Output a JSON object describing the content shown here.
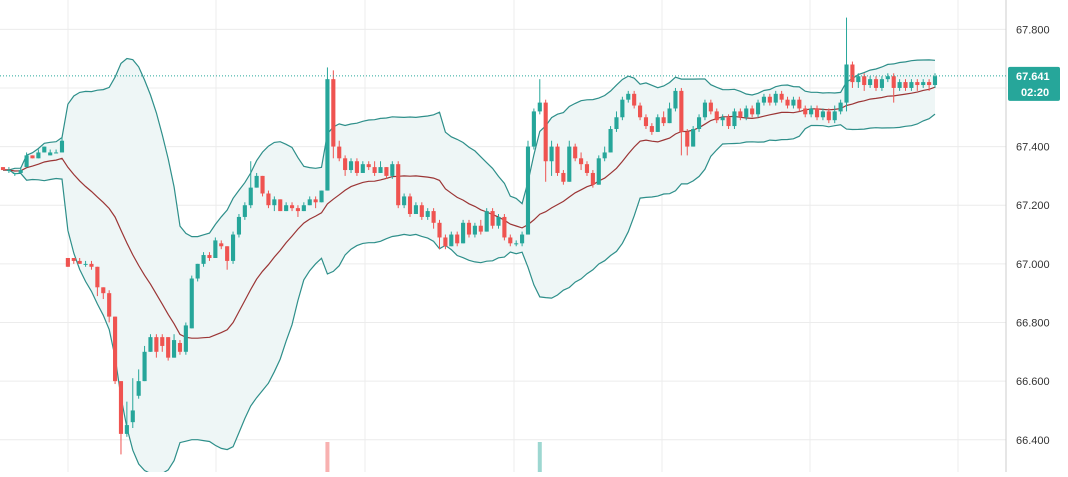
{
  "chart_data": {
    "type": "candlestick",
    "y_axis": {
      "position": "right",
      "ticks": [
        "67.800",
        "67.600",
        "67.400",
        "67.200",
        "67.000",
        "66.800",
        "66.600",
        "66.400"
      ],
      "tick_values": [
        67.8,
        67.6,
        67.4,
        67.2,
        67.0,
        66.8,
        66.6,
        66.4
      ],
      "ylim": [
        66.29,
        67.9
      ]
    },
    "grid": true,
    "last_price": {
      "value": 67.641,
      "label": "67.641",
      "countdown": "02:20"
    },
    "colors": {
      "up": "#26a69a",
      "down": "#ef5350",
      "band_line": "#2e8f8a",
      "band_fill": "#eef6f6",
      "ma_line": "#9b3535",
      "price_line": "#26a69a",
      "grid": "#ececec",
      "axis_text": "#333333"
    },
    "candles": [
      [
        67.33,
        67.32,
        67.32,
        67.33
      ],
      [
        67.32,
        67.32,
        67.31,
        67.33
      ],
      [
        67.31,
        67.31,
        67.3,
        67.31
      ],
      [
        67.31,
        67.32,
        67.31,
        67.33
      ],
      [
        67.33,
        67.37,
        67.33,
        67.38
      ],
      [
        67.37,
        67.36,
        67.36,
        67.37
      ],
      [
        67.36,
        67.38,
        67.36,
        67.39
      ],
      [
        67.38,
        67.4,
        67.38,
        67.4
      ],
      [
        67.37,
        67.38,
        67.37,
        67.39
      ],
      [
        67.38,
        67.38,
        67.38,
        67.39
      ],
      [
        67.38,
        67.42,
        67.38,
        67.43
      ],
      [
        67.02,
        66.99,
        66.99,
        67.02
      ],
      [
        67.02,
        67.01,
        67.0,
        67.02
      ],
      [
        67.01,
        67.0,
        67.0,
        67.02
      ],
      [
        67.0,
        67.0,
        66.99,
        67.01
      ],
      [
        67.0,
        66.99,
        66.98,
        67.01
      ],
      [
        66.99,
        66.92,
        66.89,
        66.99
      ],
      [
        66.92,
        66.9,
        66.88,
        66.92
      ],
      [
        66.9,
        66.82,
        66.8,
        66.91
      ],
      [
        66.82,
        66.6,
        66.59,
        66.82
      ],
      [
        66.6,
        66.42,
        66.35,
        66.6
      ],
      [
        66.42,
        66.45,
        66.41,
        66.53
      ],
      [
        66.46,
        66.5,
        66.44,
        66.61
      ],
      [
        66.55,
        66.6,
        66.54,
        66.64
      ],
      [
        66.6,
        66.7,
        66.6,
        66.72
      ],
      [
        66.7,
        66.75,
        66.7,
        66.76
      ],
      [
        66.75,
        66.7,
        66.68,
        66.76
      ],
      [
        66.75,
        66.72,
        66.7,
        66.76
      ],
      [
        66.75,
        66.68,
        66.67,
        66.75
      ],
      [
        66.68,
        66.74,
        66.68,
        66.76
      ],
      [
        66.73,
        66.7,
        66.69,
        66.74
      ],
      [
        66.7,
        66.79,
        66.69,
        66.8
      ],
      [
        66.78,
        66.95,
        66.78,
        66.96
      ],
      [
        66.95,
        67.0,
        66.94,
        67.0
      ],
      [
        67.0,
        67.03,
        66.99,
        67.04
      ],
      [
        67.03,
        67.02,
        67.01,
        67.04
      ],
      [
        67.02,
        67.08,
        67.02,
        67.09
      ],
      [
        67.07,
        67.06,
        67.05,
        67.08
      ],
      [
        67.06,
        67.01,
        66.98,
        67.06
      ],
      [
        67.01,
        67.1,
        67.0,
        67.11
      ],
      [
        67.1,
        67.16,
        67.09,
        67.17
      ],
      [
        67.16,
        67.2,
        67.15,
        67.21
      ],
      [
        67.2,
        67.26,
        67.19,
        67.35
      ],
      [
        67.26,
        67.3,
        67.26,
        67.31
      ],
      [
        67.3,
        67.24,
        67.23,
        67.3
      ],
      [
        67.24,
        67.2,
        67.19,
        67.25
      ],
      [
        67.2,
        67.22,
        67.18,
        67.23
      ],
      [
        67.22,
        67.18,
        67.18,
        67.22
      ],
      [
        67.18,
        67.2,
        67.18,
        67.21
      ],
      [
        67.2,
        67.19,
        67.18,
        67.21
      ],
      [
        67.19,
        67.18,
        67.16,
        67.2
      ],
      [
        67.18,
        67.2,
        67.18,
        67.21
      ],
      [
        67.2,
        67.22,
        67.2,
        67.23
      ],
      [
        67.22,
        67.21,
        67.19,
        67.23
      ],
      [
        67.21,
        67.25,
        67.21,
        67.25
      ],
      [
        67.25,
        67.63,
        67.25,
        67.67
      ],
      [
        67.63,
        67.4,
        67.36,
        67.66
      ],
      [
        67.4,
        67.36,
        67.35,
        67.42
      ],
      [
        67.36,
        67.32,
        67.3,
        67.37
      ],
      [
        67.32,
        67.35,
        67.31,
        67.36
      ],
      [
        67.35,
        67.31,
        67.3,
        67.36
      ],
      [
        67.31,
        67.34,
        67.31,
        67.35
      ],
      [
        67.34,
        67.33,
        67.32,
        67.35
      ],
      [
        67.33,
        67.31,
        67.3,
        67.35
      ],
      [
        67.31,
        67.33,
        67.31,
        67.35
      ],
      [
        67.33,
        67.3,
        67.29,
        67.33
      ],
      [
        67.3,
        67.34,
        67.29,
        67.35
      ],
      [
        67.34,
        67.2,
        67.19,
        67.35
      ],
      [
        67.2,
        67.23,
        67.19,
        67.24
      ],
      [
        67.23,
        67.17,
        67.16,
        67.24
      ],
      [
        67.17,
        67.2,
        67.17,
        67.21
      ],
      [
        67.2,
        67.16,
        67.15,
        67.21
      ],
      [
        67.16,
        67.18,
        67.15,
        67.19
      ],
      [
        67.18,
        67.14,
        67.12,
        67.19
      ],
      [
        67.14,
        67.09,
        67.05,
        67.15
      ],
      [
        67.09,
        67.06,
        67.05,
        67.1
      ],
      [
        67.06,
        67.1,
        67.06,
        67.11
      ],
      [
        67.1,
        67.07,
        67.06,
        67.11
      ],
      [
        67.07,
        67.14,
        67.07,
        67.15
      ],
      [
        67.14,
        67.1,
        67.09,
        67.15
      ],
      [
        67.1,
        67.13,
        67.09,
        67.14
      ],
      [
        67.13,
        67.11,
        67.1,
        67.15
      ],
      [
        67.11,
        67.18,
        67.11,
        67.19
      ],
      [
        67.18,
        67.13,
        67.12,
        67.19
      ],
      [
        67.13,
        67.16,
        67.12,
        67.17
      ],
      [
        67.16,
        67.09,
        67.08,
        67.17
      ],
      [
        67.09,
        67.07,
        67.06,
        67.1
      ],
      [
        67.07,
        67.07,
        67.06,
        67.08
      ],
      [
        67.07,
        67.1,
        67.06,
        67.11
      ],
      [
        67.1,
        67.4,
        67.1,
        67.42
      ],
      [
        67.4,
        67.52,
        67.39,
        67.53
      ],
      [
        67.52,
        67.55,
        67.51,
        67.63
      ],
      [
        67.55,
        67.35,
        67.28,
        67.56
      ],
      [
        67.35,
        67.4,
        67.3,
        67.42
      ],
      [
        67.4,
        67.31,
        67.3,
        67.41
      ],
      [
        67.31,
        67.28,
        67.27,
        67.32
      ],
      [
        67.28,
        67.4,
        67.28,
        67.42
      ],
      [
        67.4,
        67.36,
        67.35,
        67.41
      ],
      [
        67.36,
        67.34,
        67.32,
        67.38
      ],
      [
        67.34,
        67.31,
        67.3,
        67.35
      ],
      [
        67.31,
        67.27,
        67.26,
        67.32
      ],
      [
        67.27,
        67.36,
        67.27,
        67.37
      ],
      [
        67.36,
        67.38,
        67.35,
        67.4
      ],
      [
        67.38,
        67.46,
        67.38,
        67.47
      ],
      [
        67.46,
        67.5,
        67.45,
        67.52
      ],
      [
        67.5,
        67.56,
        67.49,
        67.57
      ],
      [
        67.56,
        67.58,
        67.55,
        67.59
      ],
      [
        67.58,
        67.54,
        67.53,
        67.59
      ],
      [
        67.54,
        67.5,
        67.49,
        67.55
      ],
      [
        67.5,
        67.47,
        67.46,
        67.51
      ],
      [
        67.47,
        67.45,
        67.44,
        67.48
      ],
      [
        67.45,
        67.5,
        67.45,
        67.51
      ],
      [
        67.5,
        67.48,
        67.47,
        67.52
      ],
      [
        67.48,
        67.53,
        67.48,
        67.55
      ],
      [
        67.53,
        67.59,
        67.52,
        67.6
      ],
      [
        67.59,
        67.45,
        67.37,
        67.6
      ],
      [
        67.45,
        67.4,
        67.37,
        67.46
      ],
      [
        67.4,
        67.46,
        67.4,
        67.47
      ],
      [
        67.46,
        67.5,
        67.45,
        67.51
      ],
      [
        67.5,
        67.55,
        67.49,
        67.56
      ],
      [
        67.55,
        67.52,
        67.51,
        67.56
      ],
      [
        67.52,
        67.49,
        67.48,
        67.53
      ],
      [
        67.49,
        67.5,
        67.47,
        67.51
      ],
      [
        67.5,
        67.47,
        67.46,
        67.51
      ],
      [
        67.47,
        67.52,
        67.46,
        67.53
      ],
      [
        67.52,
        67.5,
        67.49,
        67.53
      ],
      [
        67.5,
        67.53,
        67.49,
        67.54
      ],
      [
        67.53,
        67.51,
        67.5,
        67.54
      ],
      [
        67.51,
        67.55,
        67.5,
        67.56
      ],
      [
        67.55,
        67.57,
        67.54,
        67.58
      ],
      [
        67.57,
        67.55,
        67.54,
        67.58
      ],
      [
        67.55,
        67.58,
        67.54,
        67.59
      ],
      [
        67.58,
        67.56,
        67.55,
        67.59
      ],
      [
        67.56,
        67.54,
        67.53,
        67.57
      ],
      [
        67.54,
        67.56,
        67.53,
        67.57
      ],
      [
        67.56,
        67.53,
        67.52,
        67.57
      ],
      [
        67.53,
        67.51,
        67.5,
        67.54
      ],
      [
        67.51,
        67.53,
        67.5,
        67.54
      ],
      [
        67.53,
        67.5,
        67.49,
        67.54
      ],
      [
        67.5,
        67.52,
        67.49,
        67.53
      ],
      [
        67.52,
        67.49,
        67.48,
        67.53
      ],
      [
        67.49,
        67.52,
        67.48,
        67.54
      ],
      [
        67.52,
        67.55,
        67.51,
        67.56
      ],
      [
        67.55,
        67.68,
        67.52,
        67.84
      ],
      [
        67.68,
        67.62,
        67.6,
        67.69
      ],
      [
        67.62,
        67.64,
        67.6,
        67.65
      ],
      [
        67.64,
        67.61,
        67.59,
        67.65
      ],
      [
        67.61,
        67.63,
        67.6,
        67.64
      ],
      [
        67.63,
        67.6,
        67.59,
        67.64
      ],
      [
        67.6,
        67.63,
        67.59,
        67.64
      ],
      [
        67.63,
        67.64,
        67.62,
        67.65
      ],
      [
        67.64,
        67.6,
        67.55,
        67.65
      ],
      [
        67.6,
        67.62,
        67.59,
        67.63
      ],
      [
        67.62,
        67.6,
        67.59,
        67.63
      ],
      [
        67.6,
        67.62,
        67.59,
        67.63
      ],
      [
        67.62,
        67.61,
        67.59,
        67.63
      ],
      [
        67.61,
        67.62,
        67.6,
        67.63
      ],
      [
        67.62,
        67.61,
        67.59,
        67.63
      ],
      [
        67.61,
        67.64,
        67.6,
        67.65
      ]
    ]
  }
}
